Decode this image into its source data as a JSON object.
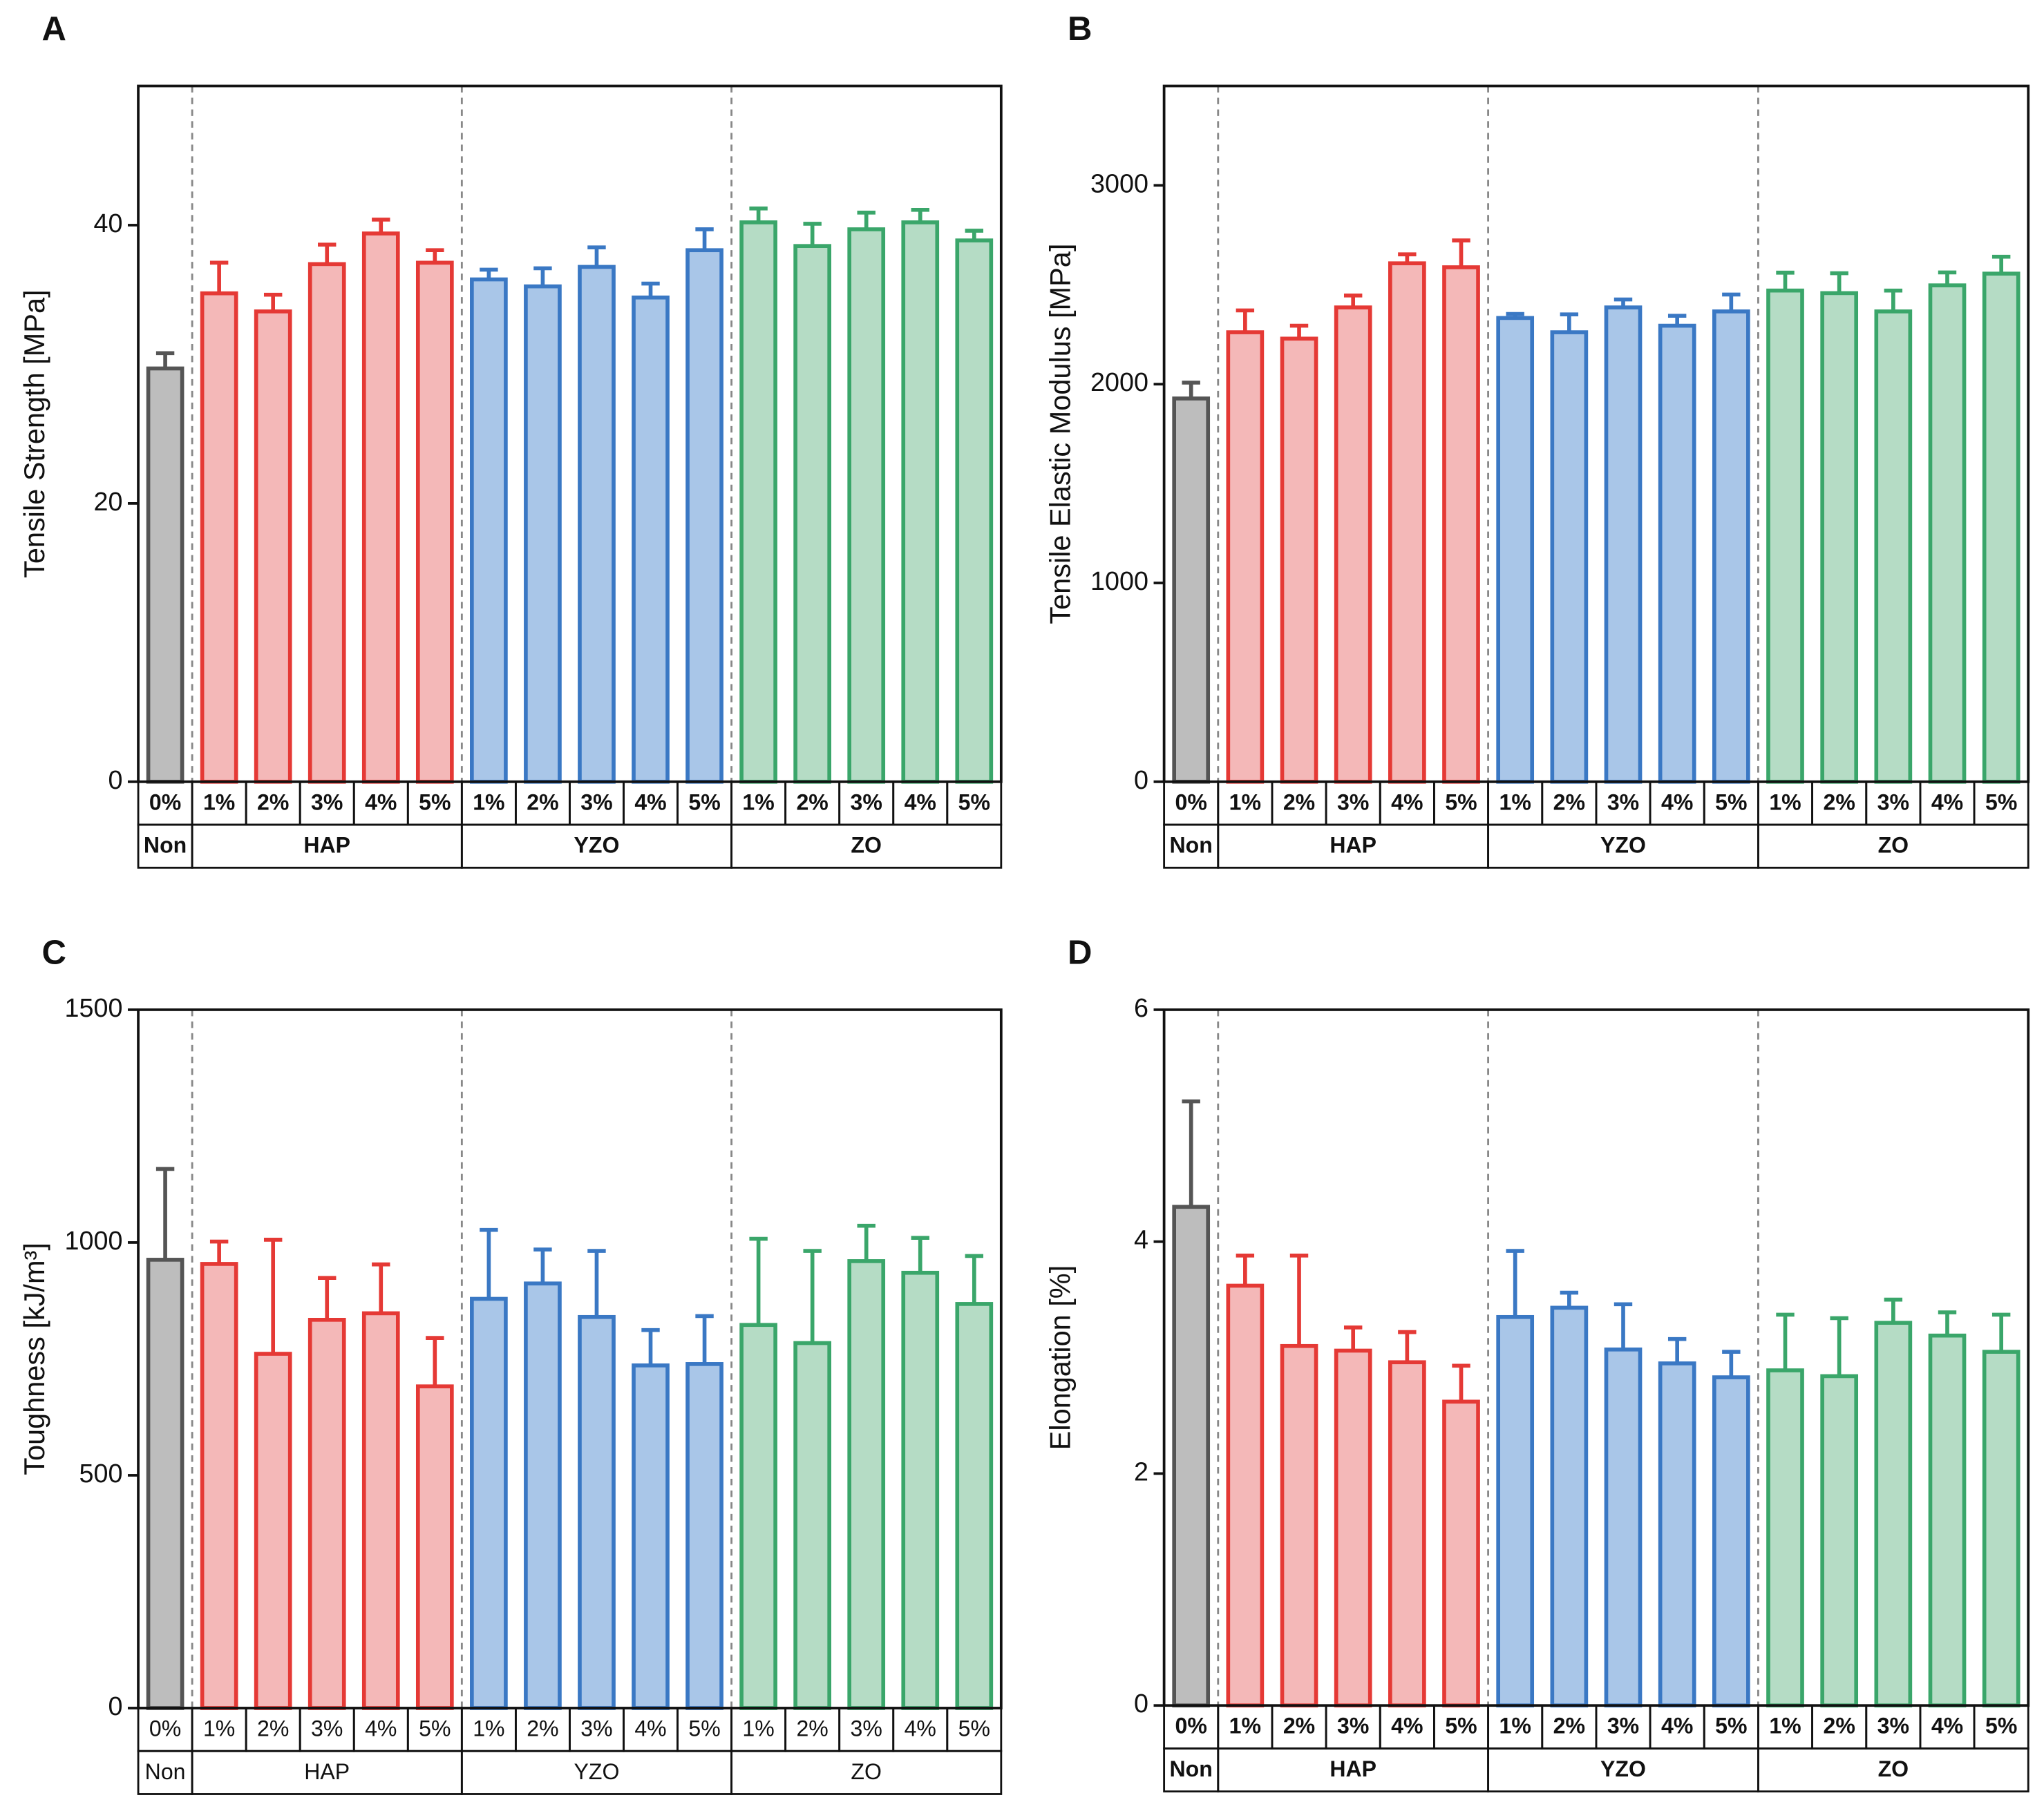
{
  "chart_data": [
    {
      "type": "bar",
      "panel": "A",
      "ylabel": "Tensile Strength [MPa]",
      "ylim": [
        0,
        50
      ],
      "yticks": [
        0,
        20,
        40
      ],
      "bold_labels": true,
      "series": [
        {
          "name": "Non",
          "color": "#555555",
          "fill": "#bdbdbd",
          "categories": [
            "0%"
          ],
          "values": [
            29.7
          ],
          "errors": [
            1.1
          ]
        },
        {
          "name": "HAP",
          "color": "#e53935",
          "fill": "#f4b8b8",
          "categories": [
            "1%",
            "2%",
            "3%",
            "4%",
            "5%"
          ],
          "values": [
            35.1,
            33.8,
            37.2,
            39.4,
            37.3
          ],
          "errors": [
            2.2,
            1.2,
            1.4,
            1.0,
            0.9
          ]
        },
        {
          "name": "YZO",
          "color": "#3a78c4",
          "fill": "#a9c6e8",
          "categories": [
            "1%",
            "2%",
            "3%",
            "4%",
            "5%"
          ],
          "values": [
            36.1,
            35.6,
            37.0,
            34.8,
            38.2
          ],
          "errors": [
            0.7,
            1.3,
            1.4,
            1.0,
            1.5
          ]
        },
        {
          "name": "ZO",
          "color": "#3aa66a",
          "fill": "#b5dcc5",
          "categories": [
            "1%",
            "2%",
            "3%",
            "4%",
            "5%"
          ],
          "values": [
            40.2,
            38.5,
            39.7,
            40.2,
            38.9
          ],
          "errors": [
            1.0,
            1.6,
            1.2,
            0.9,
            0.7
          ]
        }
      ]
    },
    {
      "type": "bar",
      "panel": "B",
      "ylabel": "Tensile Elastic Modulus [MPa]",
      "ylim": [
        0,
        3500
      ],
      "yticks": [
        0,
        1000,
        2000,
        3000
      ],
      "bold_labels": true,
      "series": [
        {
          "name": "Non",
          "color": "#555555",
          "fill": "#bdbdbd",
          "categories": [
            "0%"
          ],
          "values": [
            1928
          ],
          "errors": [
            80
          ]
        },
        {
          "name": "HAP",
          "color": "#e53935",
          "fill": "#f4b8b8",
          "categories": [
            "1%",
            "2%",
            "3%",
            "4%",
            "5%"
          ],
          "values": [
            2261,
            2229,
            2386,
            2608,
            2588
          ],
          "errors": [
            110,
            65,
            60,
            45,
            135
          ]
        },
        {
          "name": "YZO",
          "color": "#3a78c4",
          "fill": "#a9c6e8",
          "categories": [
            "1%",
            "2%",
            "3%",
            "4%",
            "5%"
          ],
          "values": [
            2333,
            2261,
            2386,
            2294,
            2366
          ],
          "errors": [
            20,
            90,
            40,
            50,
            85
          ]
        },
        {
          "name": "ZO",
          "color": "#3aa66a",
          "fill": "#b5dcc5",
          "categories": [
            "1%",
            "2%",
            "3%",
            "4%",
            "5%"
          ],
          "values": [
            2471,
            2458,
            2366,
            2497,
            2556
          ],
          "errors": [
            90,
            100,
            105,
            65,
            85
          ]
        }
      ]
    },
    {
      "type": "bar",
      "panel": "C",
      "ylabel": "Toughness [kJ/m³]",
      "ylim": [
        0,
        1500
      ],
      "yticks": [
        0,
        500,
        1000,
        1500
      ],
      "bold_labels": false,
      "series": [
        {
          "name": "Non",
          "color": "#555555",
          "fill": "#bdbdbd",
          "categories": [
            "0%"
          ],
          "values": [
            963
          ],
          "errors": [
            195
          ]
        },
        {
          "name": "HAP",
          "color": "#e53935",
          "fill": "#f4b8b8",
          "categories": [
            "1%",
            "2%",
            "3%",
            "4%",
            "5%"
          ],
          "values": [
            954,
            761,
            834,
            848,
            691
          ],
          "errors": [
            48,
            245,
            90,
            105,
            104
          ]
        },
        {
          "name": "YZO",
          "color": "#3a78c4",
          "fill": "#a9c6e8",
          "categories": [
            "1%",
            "2%",
            "3%",
            "4%",
            "5%"
          ],
          "values": [
            879,
            912,
            840,
            736,
            739
          ],
          "errors": [
            148,
            73,
            142,
            76,
            103
          ]
        },
        {
          "name": "ZO",
          "color": "#3aa66a",
          "fill": "#b5dcc5",
          "categories": [
            "1%",
            "2%",
            "3%",
            "4%",
            "5%"
          ],
          "values": [
            823,
            784,
            960,
            935,
            868
          ],
          "errors": [
            185,
            198,
            76,
            75,
            103
          ]
        }
      ]
    },
    {
      "type": "bar",
      "panel": "D",
      "ylabel": "Elongation [%]",
      "ylim": [
        0,
        6
      ],
      "yticks": [
        0,
        2,
        4,
        6
      ],
      "bold_labels": true,
      "series": [
        {
          "name": "Non",
          "color": "#555555",
          "fill": "#bdbdbd",
          "categories": [
            "0%"
          ],
          "values": [
            4.3
          ],
          "errors": [
            0.91
          ]
        },
        {
          "name": "HAP",
          "color": "#e53935",
          "fill": "#f4b8b8",
          "categories": [
            "1%",
            "2%",
            "3%",
            "4%",
            "5%"
          ],
          "values": [
            3.62,
            3.1,
            3.06,
            2.96,
            2.62
          ],
          "errors": [
            0.26,
            0.78,
            0.2,
            0.26,
            0.31
          ]
        },
        {
          "name": "YZO",
          "color": "#3a78c4",
          "fill": "#a9c6e8",
          "categories": [
            "1%",
            "2%",
            "3%",
            "4%",
            "5%"
          ],
          "values": [
            3.35,
            3.43,
            3.07,
            2.95,
            2.83
          ],
          "errors": [
            0.57,
            0.13,
            0.39,
            0.21,
            0.22
          ]
        },
        {
          "name": "ZO",
          "color": "#3aa66a",
          "fill": "#b5dcc5",
          "categories": [
            "1%",
            "2%",
            "3%",
            "4%",
            "5%"
          ],
          "values": [
            2.89,
            2.84,
            3.3,
            3.19,
            3.05
          ],
          "errors": [
            0.48,
            0.5,
            0.2,
            0.2,
            0.32
          ]
        }
      ]
    }
  ]
}
